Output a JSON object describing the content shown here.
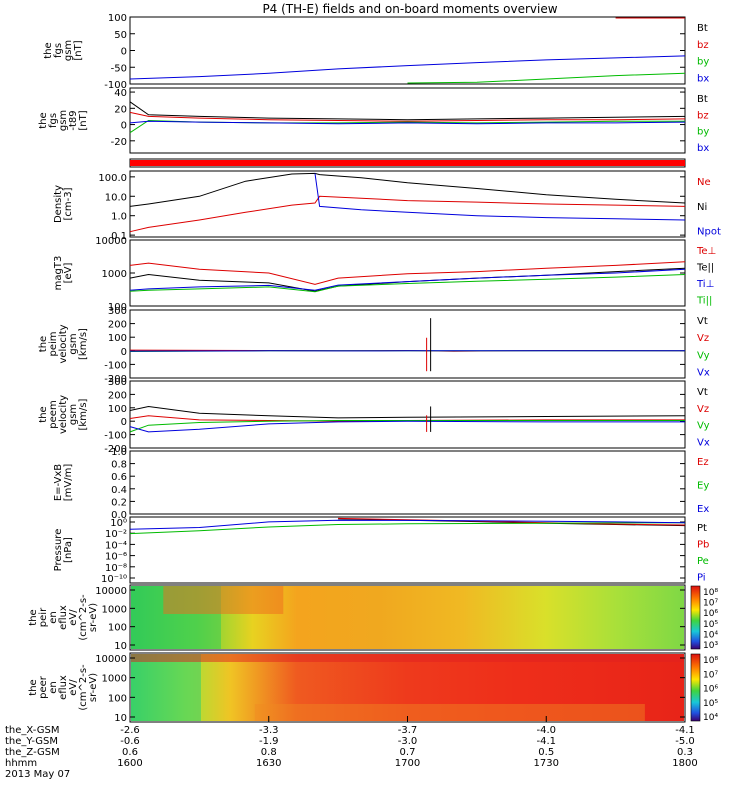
{
  "title": "P4 (TH-E) fields and on-board moments overview",
  "footer": {
    "row_labels": [
      "the_X-GSM",
      "the_Y-GSM",
      "the_Z-GSM",
      "hhmm",
      "2013 May 07"
    ],
    "columns": [
      {
        "x": "-2.6",
        "y": "-0.6",
        "z": "0.6",
        "t": "1600"
      },
      {
        "x": "-3.3",
        "y": "-1.9",
        "z": "0.8",
        "t": "1630"
      },
      {
        "x": "-3.7",
        "y": "-3.0",
        "z": "0.7",
        "t": "1700"
      },
      {
        "x": "-4.0",
        "y": "-4.1",
        "z": "0.5",
        "t": "1730"
      },
      {
        "x": "-4.1",
        "y": "-5.0",
        "z": "0.3",
        "t": "1800"
      }
    ]
  },
  "chart_data": [
    {
      "type": "line",
      "ylabel": [
        "the",
        "fgs",
        "gsm",
        "[nT]"
      ],
      "yticks": [
        "100",
        "50",
        "0",
        "-50",
        "-100"
      ],
      "ylim": [
        -100,
        100
      ],
      "legend": [
        {
          "name": "Bt",
          "color": "#000000"
        },
        {
          "name": "bz",
          "color": "#dd0000"
        },
        {
          "name": "by",
          "color": "#00bb00"
        },
        {
          "name": "bx",
          "color": "#0000dd"
        }
      ],
      "x": [
        1600,
        1615,
        1630,
        1645,
        1700,
        1715,
        1730,
        1745,
        1800
      ],
      "series": [
        {
          "name": "bz",
          "color": "#dd0000",
          "values": [
            null,
            null,
            null,
            null,
            null,
            null,
            null,
            120,
            100
          ]
        },
        {
          "name": "by",
          "color": "#00bb00",
          "values": [
            null,
            null,
            null,
            null,
            -100,
            -95,
            -85,
            -75,
            -68
          ]
        },
        {
          "name": "bx",
          "color": "#0000dd",
          "values": [
            -85,
            -78,
            -68,
            -55,
            -45,
            -36,
            -28,
            -22,
            -16
          ]
        }
      ]
    },
    {
      "type": "line",
      "ylabel": [
        "the",
        "fgs",
        "gsm",
        "-t89",
        "[nT]"
      ],
      "yticks": [
        "40",
        "20",
        "0",
        "-20"
      ],
      "ylim": [
        -35,
        45
      ],
      "legend": [
        {
          "name": "Bt",
          "color": "#000000"
        },
        {
          "name": "bz",
          "color": "#dd0000"
        },
        {
          "name": "by",
          "color": "#00bb00"
        },
        {
          "name": "bx",
          "color": "#0000dd"
        }
      ],
      "x": [
        1600,
        1604,
        1615,
        1630,
        1645,
        1700,
        1715,
        1730,
        1745,
        1800
      ],
      "series": [
        {
          "name": "Bt",
          "color": "#000000",
          "values": [
            28,
            12,
            10,
            8,
            7,
            6,
            7,
            8,
            9,
            10
          ]
        },
        {
          "name": "bz",
          "color": "#dd0000",
          "values": [
            15,
            10,
            8,
            6,
            5,
            4,
            5,
            6,
            6,
            7
          ]
        },
        {
          "name": "by",
          "color": "#00bb00",
          "values": [
            -10,
            5,
            3,
            2,
            2,
            3,
            2,
            3,
            4,
            4
          ]
        },
        {
          "name": "bx",
          "color": "#0000dd",
          "values": [
            2,
            4,
            3,
            2,
            1,
            2,
            1,
            2,
            2,
            3
          ]
        }
      ]
    },
    {
      "type": "bar",
      "note": "quality flag strip",
      "color": "#ff0000"
    },
    {
      "type": "line",
      "scale": "log",
      "ylabel": [
        "Density",
        "[cm-3]"
      ],
      "yticks": [
        "100.0",
        "10.0",
        "1.0",
        "0.1"
      ],
      "ylim": [
        0.08,
        200
      ],
      "legend": [
        {
          "name": "Ne",
          "color": "#dd0000"
        },
        {
          "name": "Ni",
          "color": "#000000"
        },
        {
          "name": "Npot",
          "color": "#0000dd"
        }
      ],
      "x": [
        1600,
        1604,
        1615,
        1625,
        1635,
        1640,
        1641,
        1650,
        1700,
        1715,
        1730,
        1745,
        1800
      ],
      "series": [
        {
          "name": "Ne",
          "color": "#dd0000",
          "values": [
            0.15,
            0.25,
            0.6,
            1.5,
            3.5,
            4.5,
            10,
            8,
            6,
            5,
            4,
            3.5,
            3
          ]
        },
        {
          "name": "Ni",
          "color": "#000000",
          "values": [
            3,
            4,
            10,
            60,
            140,
            150,
            130,
            90,
            50,
            25,
            12,
            7,
            4.5
          ]
        },
        {
          "name": "Npot",
          "color": "#0000dd",
          "values": [
            null,
            null,
            null,
            null,
            null,
            150,
            3,
            2,
            1.5,
            1,
            0.8,
            0.7,
            0.6
          ]
        }
      ]
    },
    {
      "type": "line",
      "scale": "log",
      "ylabel": [
        "magT3",
        "[eV]"
      ],
      "yticks": [
        "10000",
        "1000",
        "100"
      ],
      "ylim": [
        100,
        10000
      ],
      "legend": [
        {
          "name": "Te⊥",
          "color": "#dd0000"
        },
        {
          "name": "Te||",
          "color": "#000000"
        },
        {
          "name": "Ti⊥",
          "color": "#0000dd"
        },
        {
          "name": "Ti||",
          "color": "#00bb00"
        }
      ],
      "x": [
        1600,
        1604,
        1615,
        1630,
        1640,
        1645,
        1700,
        1715,
        1730,
        1745,
        1800
      ],
      "series": [
        {
          "name": "Te⊥",
          "color": "#dd0000",
          "values": [
            1700,
            2000,
            1300,
            1000,
            450,
            700,
            950,
            1100,
            1400,
            1700,
            2200
          ]
        },
        {
          "name": "Te||",
          "color": "#000000",
          "values": [
            700,
            900,
            600,
            500,
            280,
            400,
            550,
            700,
            850,
            1100,
            1400
          ]
        },
        {
          "name": "Ti⊥",
          "color": "#0000dd",
          "values": [
            300,
            330,
            380,
            420,
            300,
            430,
            550,
            700,
            850,
            1000,
            1300
          ]
        },
        {
          "name": "Ti||",
          "color": "#00bb00",
          "values": [
            280,
            300,
            330,
            380,
            270,
            400,
            480,
            560,
            650,
            750,
            900
          ]
        }
      ]
    },
    {
      "type": "line",
      "ylabel": [
        "the",
        "peim",
        "velocity",
        "gsm",
        "[km/s]"
      ],
      "yticks": [
        "300",
        "200",
        "100",
        "0",
        "-100",
        "-200"
      ],
      "ylim": [
        -200,
        300
      ],
      "legend": [
        {
          "name": "Vt",
          "color": "#000000"
        },
        {
          "name": "Vz",
          "color": "#dd0000"
        },
        {
          "name": "Vy",
          "color": "#00bb00"
        },
        {
          "name": "Vx",
          "color": "#0000dd"
        }
      ],
      "x": [
        1600,
        1630,
        1645,
        1700,
        1710,
        1730,
        1800
      ],
      "series": [
        {
          "name": "Vz",
          "color": "#dd0000",
          "values": [
            5,
            2,
            1,
            2,
            -3,
            2,
            1
          ]
        },
        {
          "name": "Vy",
          "color": "#00bb00",
          "values": [
            -5,
            0,
            1,
            1,
            0,
            1,
            0
          ]
        },
        {
          "name": "Vx",
          "color": "#0000dd",
          "values": [
            -2,
            0,
            -1,
            0,
            0,
            1,
            0
          ]
        }
      ],
      "spike": {
        "x": 1705,
        "ymin": -150,
        "ymax": 240
      }
    },
    {
      "type": "line",
      "ylabel": [
        "the",
        "peem",
        "velocity",
        "gsm",
        "[km/s]"
      ],
      "yticks": [
        "300",
        "200",
        "100",
        "0",
        "-100",
        "-200"
      ],
      "ylim": [
        -200,
        300
      ],
      "legend": [
        {
          "name": "Vt",
          "color": "#000000"
        },
        {
          "name": "Vz",
          "color": "#dd0000"
        },
        {
          "name": "Vy",
          "color": "#00bb00"
        },
        {
          "name": "Vx",
          "color": "#0000dd"
        }
      ],
      "x": [
        1600,
        1604,
        1615,
        1630,
        1645,
        1700,
        1730,
        1800
      ],
      "series": [
        {
          "name": "Vt",
          "color": "#000000",
          "values": [
            80,
            110,
            60,
            40,
            25,
            30,
            35,
            40
          ]
        },
        {
          "name": "Vz",
          "color": "#dd0000",
          "values": [
            20,
            40,
            10,
            5,
            0,
            5,
            10,
            10
          ]
        },
        {
          "name": "Vy",
          "color": "#00bb00",
          "values": [
            -80,
            -30,
            -10,
            0,
            5,
            5,
            5,
            5
          ]
        },
        {
          "name": "Vx",
          "color": "#0000dd",
          "values": [
            -40,
            -80,
            -60,
            -20,
            -5,
            0,
            -5,
            -5
          ]
        }
      ],
      "spike": {
        "x": 1705,
        "ymin": -80,
        "ymax": 110
      }
    },
    {
      "type": "line",
      "ylabel": [
        "E=-VxB",
        "[mV/m]"
      ],
      "yticks": [
        "1.0",
        "0.8",
        "0.6",
        "0.4",
        "0.2",
        "0.0"
      ],
      "ylim": [
        0,
        1
      ],
      "legend": [
        {
          "name": "Ez",
          "color": "#dd0000"
        },
        {
          "name": "Ey",
          "color": "#00bb00"
        },
        {
          "name": "Ex",
          "color": "#0000dd"
        }
      ],
      "series": []
    },
    {
      "type": "line",
      "scale": "log",
      "ylabel": [
        "Pressure",
        "[nPa]"
      ],
      "yticks": [
        "10⁰",
        "10⁻²",
        "10⁻⁴",
        "10⁻⁶",
        "10⁻⁸",
        "10⁻¹⁰"
      ],
      "ylim": [
        1e-10,
        5
      ],
      "legend": [
        {
          "name": "Pt",
          "color": "#000000"
        },
        {
          "name": "Pb",
          "color": "#dd0000"
        },
        {
          "name": "Pe",
          "color": "#00bb00"
        },
        {
          "name": "Pi",
          "color": "#0000dd"
        }
      ],
      "x": [
        1600,
        1615,
        1630,
        1645,
        1700,
        1715,
        1730,
        1745,
        1800
      ],
      "series": [
        {
          "name": "Pt",
          "color": "#000000",
          "values": [
            null,
            null,
            null,
            2.5,
            1.5,
            0.9,
            0.5,
            0.3,
            0.2
          ]
        },
        {
          "name": "Pb",
          "color": "#dd0000",
          "values": [
            null,
            null,
            null,
            3,
            1.8,
            1.1,
            0.6,
            0.35,
            0.25
          ]
        },
        {
          "name": "Pe",
          "color": "#00bb00",
          "values": [
            0.01,
            0.03,
            0.12,
            0.3,
            0.4,
            0.45,
            0.5,
            0.55,
            0.6
          ]
        },
        {
          "name": "Pi",
          "color": "#0000dd",
          "values": [
            0.05,
            0.1,
            0.8,
            1.5,
            1.4,
            1.2,
            1.0,
            0.8,
            0.6
          ]
        }
      ]
    },
    {
      "type": "heatmap",
      "ylabel": [
        "the",
        "peir",
        "en",
        "eflux",
        "eV/",
        "(cm^2-s-",
        "sr-eV)"
      ],
      "yticks": [
        "10000",
        "1000",
        "100",
        "10"
      ],
      "ylim": [
        10,
        20000
      ],
      "colorbar": {
        "ticks": [
          "10⁸",
          "10⁷",
          "10⁶",
          "10⁵",
          "10⁴",
          "10³"
        ]
      }
    },
    {
      "type": "heatmap",
      "ylabel": [
        "the",
        "peer",
        "en",
        "eflux",
        "eV/",
        "(cm^2-s-",
        "sr-eV)"
      ],
      "yticks": [
        "10000",
        "1000",
        "100",
        "10"
      ],
      "ylim": [
        8,
        20000
      ],
      "colorbar": {
        "ticks": [
          "10⁸",
          "10⁷",
          "10⁶",
          "10⁵",
          "10⁴"
        ]
      }
    }
  ]
}
